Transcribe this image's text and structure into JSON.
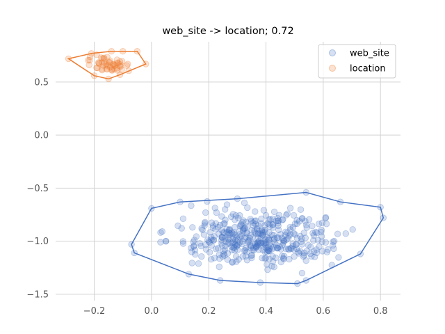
{
  "chart_data": {
    "type": "scatter",
    "title": "web_site -> location; 0.72",
    "xlabel": "",
    "ylabel": "",
    "xlim": [
      -0.335,
      0.87
    ],
    "ylim": [
      -1.56,
      0.88
    ],
    "x_ticks": [
      -0.2,
      0.0,
      0.2,
      0.4,
      0.6,
      0.8
    ],
    "y_ticks": [
      -1.5,
      -1.0,
      -0.5,
      0.0,
      0.5
    ],
    "x_tick_labels": [
      "−0.2",
      "0.0",
      "0.2",
      "0.4",
      "0.6",
      "0.8"
    ],
    "y_tick_labels": [
      "−1.5",
      "−1.0",
      "−0.5",
      "0.0",
      "0.5"
    ],
    "grid": true,
    "legend": {
      "placement": "top-right",
      "entries": [
        "web_site",
        "location"
      ]
    },
    "series": [
      {
        "name": "web_site",
        "color": "#4472c4",
        "point_count": 420,
        "x_range": [
          -0.08,
          0.81
        ],
        "y_range": [
          -1.41,
          -0.54
        ],
        "hull": [
          [
            -0.07,
            -1.03
          ],
          [
            0.0,
            -0.69
          ],
          [
            0.1,
            -0.63
          ],
          [
            0.3,
            -0.6
          ],
          [
            0.54,
            -0.54
          ],
          [
            0.66,
            -0.63
          ],
          [
            0.8,
            -0.68
          ],
          [
            0.81,
            -0.78
          ],
          [
            0.73,
            -1.12
          ],
          [
            0.54,
            -1.37
          ],
          [
            0.51,
            -1.4
          ],
          [
            0.38,
            -1.39
          ],
          [
            0.24,
            -1.37
          ],
          [
            0.13,
            -1.31
          ],
          [
            -0.06,
            -1.11
          ]
        ]
      },
      {
        "name": "location",
        "color": "#ed7d31",
        "point_count": 60,
        "x_range": [
          -0.3,
          -0.02
        ],
        "y_range": [
          0.54,
          0.79
        ],
        "hull": [
          [
            -0.29,
            0.72
          ],
          [
            -0.21,
            0.77
          ],
          [
            -0.14,
            0.79
          ],
          [
            -0.1,
            0.79
          ],
          [
            -0.05,
            0.79
          ],
          [
            -0.02,
            0.67
          ],
          [
            -0.11,
            0.57
          ],
          [
            -0.15,
            0.53
          ],
          [
            -0.2,
            0.56
          ]
        ]
      }
    ]
  }
}
